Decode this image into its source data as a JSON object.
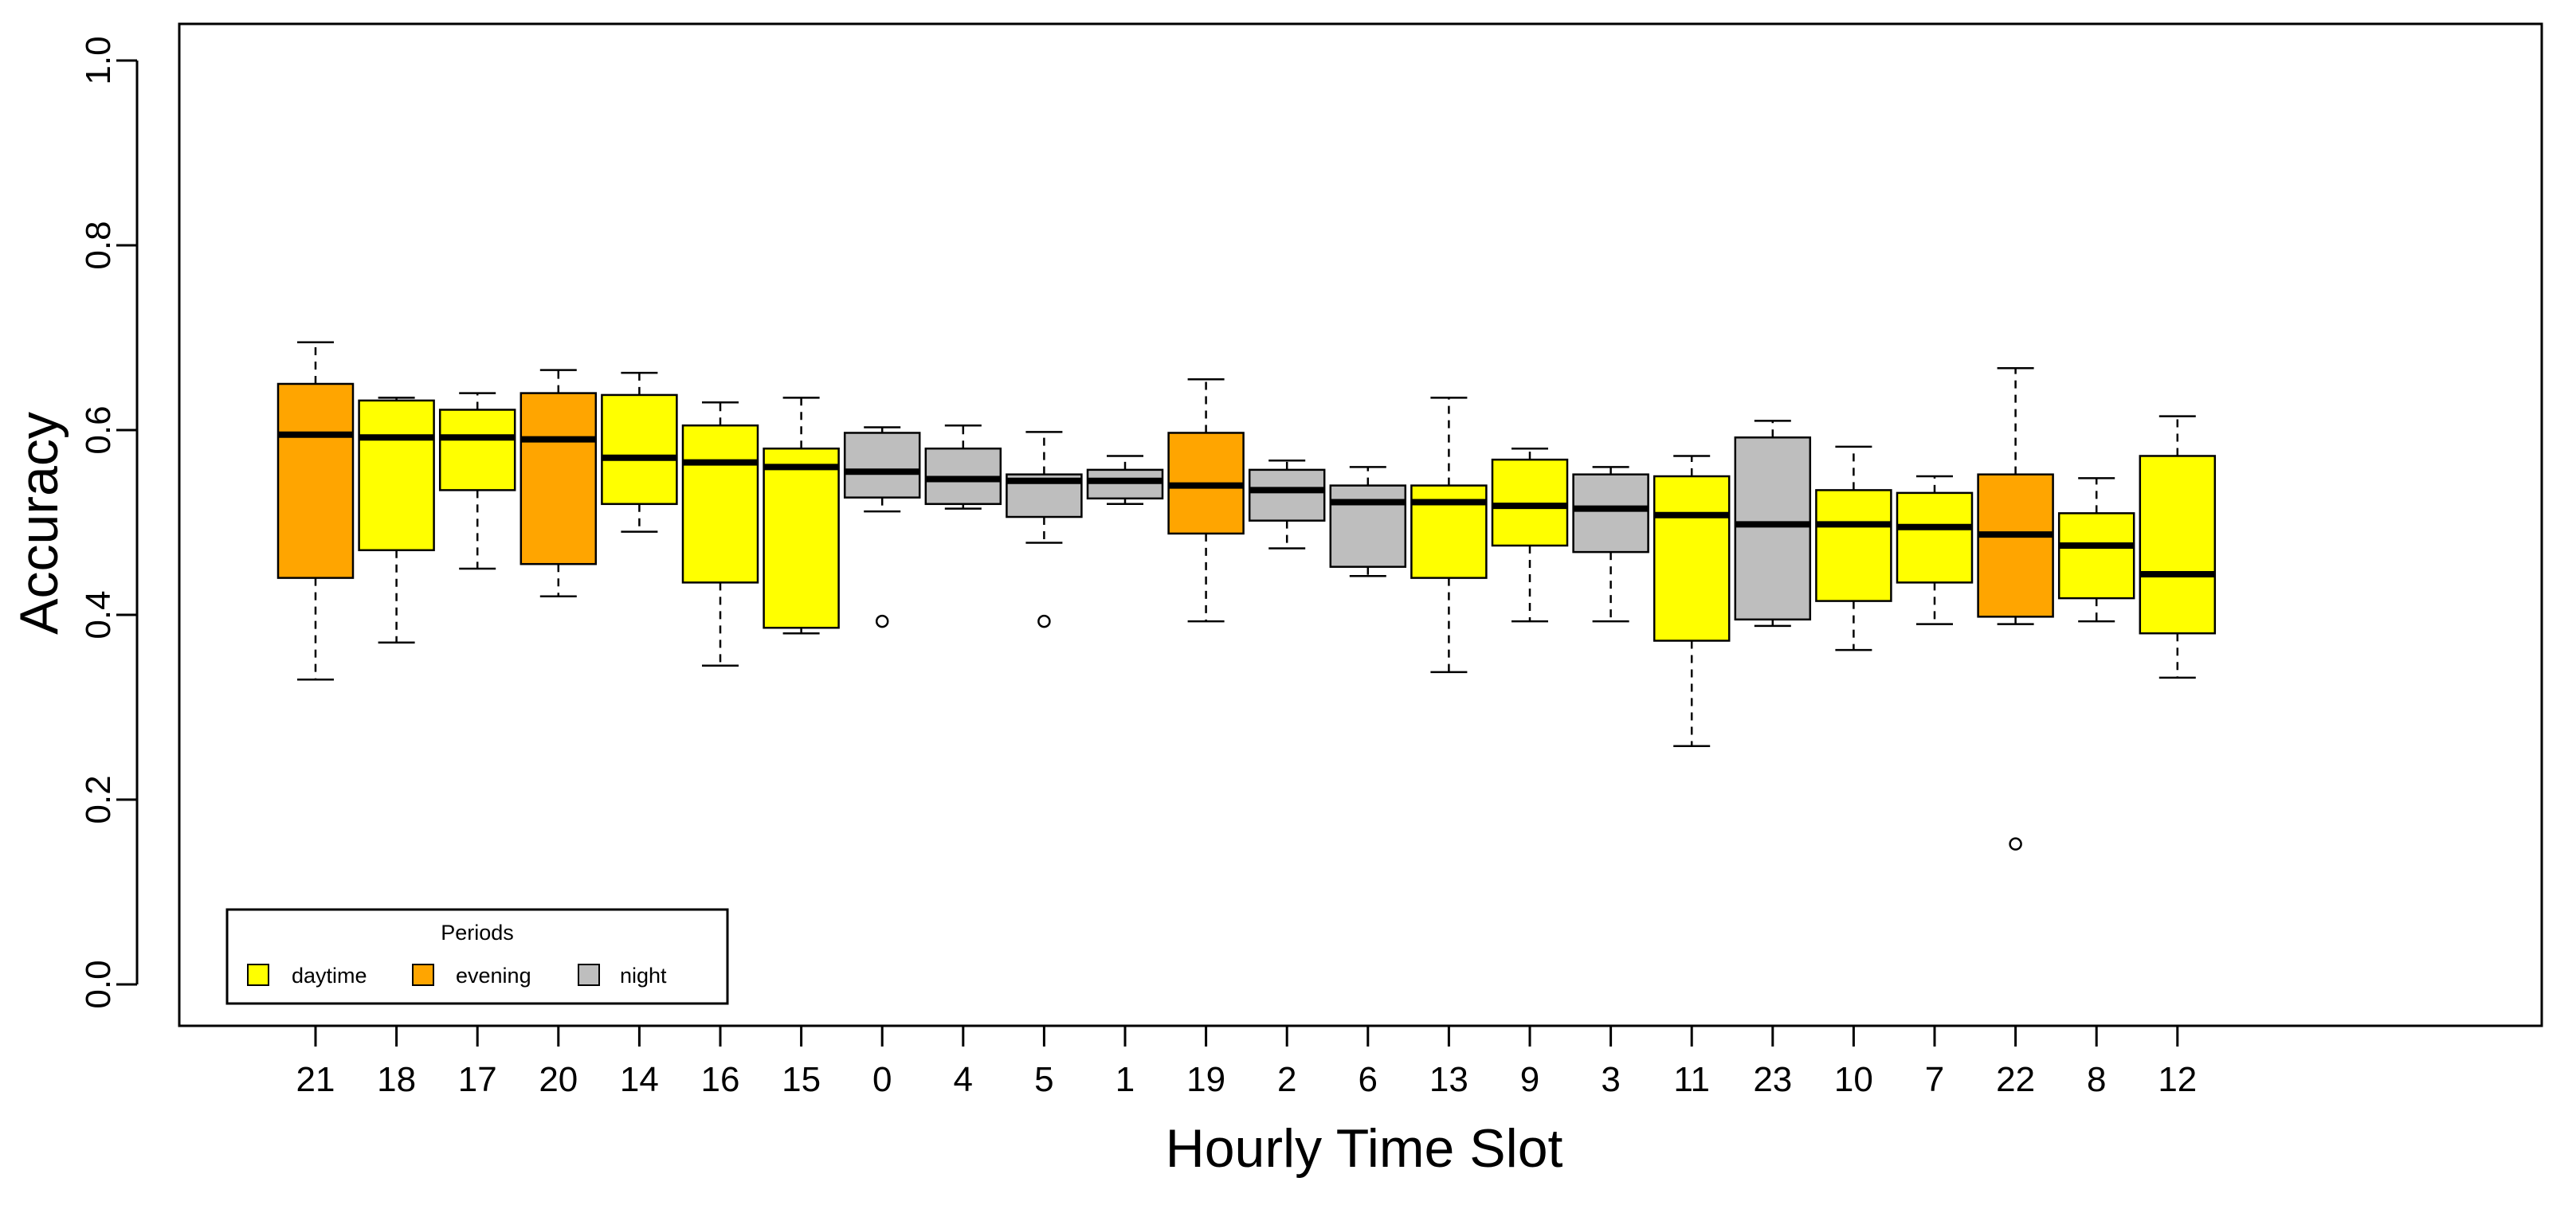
{
  "chart_data": {
    "type": "boxplot",
    "title": "",
    "xlabel": "Hourly Time Slot",
    "ylabel": "Accuracy",
    "ylim": [
      0.0,
      1.0
    ],
    "yticks": [
      "0.0",
      "0.2",
      "0.4",
      "0.6",
      "0.8",
      "1.0"
    ],
    "grid": false,
    "legend": {
      "title": "Periods",
      "position": "bottom-left",
      "entries": [
        {
          "label": "daytime",
          "color": "#ffff00"
        },
        {
          "label": "evening",
          "color": "#ffa500"
        },
        {
          "label": "night",
          "color": "#bebebe"
        }
      ]
    },
    "categories": [
      "21",
      "18",
      "17",
      "20",
      "14",
      "16",
      "15",
      "0",
      "4",
      "5",
      "1",
      "19",
      "2",
      "6",
      "13",
      "9",
      "3",
      "11",
      "23",
      "10",
      "7",
      "22",
      "8",
      "12"
    ],
    "boxes": [
      {
        "category": "21",
        "period": "evening",
        "whisker_low": 0.33,
        "q1": 0.44,
        "median": 0.595,
        "q3": 0.65,
        "whisker_high": 0.695,
        "outliers": []
      },
      {
        "category": "18",
        "period": "daytime",
        "whisker_low": 0.37,
        "q1": 0.47,
        "median": 0.592,
        "q3": 0.632,
        "whisker_high": 0.635,
        "outliers": []
      },
      {
        "category": "17",
        "period": "daytime",
        "whisker_low": 0.45,
        "q1": 0.535,
        "median": 0.592,
        "q3": 0.622,
        "whisker_high": 0.64,
        "outliers": []
      },
      {
        "category": "20",
        "period": "evening",
        "whisker_low": 0.42,
        "q1": 0.455,
        "median": 0.59,
        "q3": 0.64,
        "whisker_high": 0.665,
        "outliers": []
      },
      {
        "category": "14",
        "period": "daytime",
        "whisker_low": 0.49,
        "q1": 0.52,
        "median": 0.57,
        "q3": 0.638,
        "whisker_high": 0.662,
        "outliers": []
      },
      {
        "category": "16",
        "period": "daytime",
        "whisker_low": 0.345,
        "q1": 0.435,
        "median": 0.565,
        "q3": 0.605,
        "whisker_high": 0.63,
        "outliers": []
      },
      {
        "category": "15",
        "period": "daytime",
        "whisker_low": 0.38,
        "q1": 0.386,
        "median": 0.56,
        "q3": 0.58,
        "whisker_high": 0.635,
        "outliers": []
      },
      {
        "category": "0",
        "period": "night",
        "whisker_low": 0.512,
        "q1": 0.527,
        "median": 0.555,
        "q3": 0.597,
        "whisker_high": 0.603,
        "outliers": [
          0.393
        ]
      },
      {
        "category": "4",
        "period": "night",
        "whisker_low": 0.515,
        "q1": 0.52,
        "median": 0.547,
        "q3": 0.58,
        "whisker_high": 0.605,
        "outliers": []
      },
      {
        "category": "5",
        "period": "night",
        "whisker_low": 0.478,
        "q1": 0.506,
        "median": 0.545,
        "q3": 0.552,
        "whisker_high": 0.598,
        "outliers": [
          0.393
        ]
      },
      {
        "category": "1",
        "period": "night",
        "whisker_low": 0.52,
        "q1": 0.526,
        "median": 0.545,
        "q3": 0.557,
        "whisker_high": 0.572,
        "outliers": []
      },
      {
        "category": "19",
        "period": "evening",
        "whisker_low": 0.393,
        "q1": 0.488,
        "median": 0.54,
        "q3": 0.597,
        "whisker_high": 0.655,
        "outliers": []
      },
      {
        "category": "2",
        "period": "night",
        "whisker_low": 0.472,
        "q1": 0.502,
        "median": 0.535,
        "q3": 0.557,
        "whisker_high": 0.567,
        "outliers": []
      },
      {
        "category": "6",
        "period": "night",
        "whisker_low": 0.442,
        "q1": 0.452,
        "median": 0.522,
        "q3": 0.54,
        "whisker_high": 0.56,
        "outliers": []
      },
      {
        "category": "13",
        "period": "daytime",
        "whisker_low": 0.338,
        "q1": 0.44,
        "median": 0.522,
        "q3": 0.54,
        "whisker_high": 0.635,
        "outliers": []
      },
      {
        "category": "9",
        "period": "daytime",
        "whisker_low": 0.393,
        "q1": 0.475,
        "median": 0.518,
        "q3": 0.568,
        "whisker_high": 0.58,
        "outliers": []
      },
      {
        "category": "3",
        "period": "night",
        "whisker_low": 0.393,
        "q1": 0.468,
        "median": 0.515,
        "q3": 0.552,
        "whisker_high": 0.56,
        "outliers": []
      },
      {
        "category": "11",
        "period": "daytime",
        "whisker_low": 0.258,
        "q1": 0.372,
        "median": 0.508,
        "q3": 0.55,
        "whisker_high": 0.572,
        "outliers": []
      },
      {
        "category": "23",
        "period": "night",
        "whisker_low": 0.388,
        "q1": 0.395,
        "median": 0.498,
        "q3": 0.592,
        "whisker_high": 0.61,
        "outliers": []
      },
      {
        "category": "10",
        "period": "daytime",
        "whisker_low": 0.362,
        "q1": 0.415,
        "median": 0.498,
        "q3": 0.535,
        "whisker_high": 0.582,
        "outliers": []
      },
      {
        "category": "7",
        "period": "daytime",
        "whisker_low": 0.39,
        "q1": 0.435,
        "median": 0.495,
        "q3": 0.532,
        "whisker_high": 0.55,
        "outliers": []
      },
      {
        "category": "22",
        "period": "evening",
        "whisker_low": 0.39,
        "q1": 0.398,
        "median": 0.487,
        "q3": 0.552,
        "whisker_high": 0.667,
        "outliers": [
          0.152
        ]
      },
      {
        "category": "8",
        "period": "daytime",
        "whisker_low": 0.393,
        "q1": 0.418,
        "median": 0.475,
        "q3": 0.51,
        "whisker_high": 0.548,
        "outliers": []
      },
      {
        "category": "12",
        "period": "daytime",
        "whisker_low": 0.332,
        "q1": 0.38,
        "median": 0.444,
        "q3": 0.572,
        "whisker_high": 0.615,
        "outliers": []
      }
    ]
  }
}
